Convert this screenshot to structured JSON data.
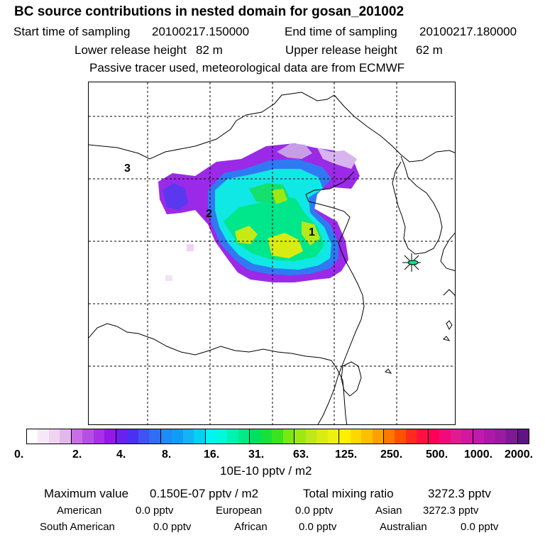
{
  "header": {
    "title": "BC  source contributions in nested domain for gosan_201002",
    "start_label": "Start time of sampling",
    "start_value": "20100217.150000",
    "end_label": "End time of sampling",
    "end_value": "20100217.180000",
    "lower_label": "Lower release height",
    "lower_value": "82 m",
    "upper_label": "Upper release height",
    "upper_value": "62 m",
    "note": "Passive tracer used, meteorological data are from ECMWF"
  },
  "map": {
    "region_labels": [
      "1",
      "2",
      "3"
    ],
    "receptor": "gosan-receptor-star"
  },
  "colorbar": {
    "colors": [
      "#ffffff",
      "#f6e8f8",
      "#eed4f2",
      "#e2b8ec",
      "#c96ee6",
      "#b54fe4",
      "#a830e6",
      "#9418ea",
      "#6a20ee",
      "#4a30f2",
      "#3f52f2",
      "#2f6ef2",
      "#1e8cf4",
      "#109cf6",
      "#13b4f4",
      "#00d2f0",
      "#00f4f2",
      "#00f8dc",
      "#00f2b0",
      "#00ea84",
      "#00e060",
      "#18e03a",
      "#3ae41c",
      "#7ae812",
      "#9ee812",
      "#bee818",
      "#d8ec14",
      "#eef010",
      "#fff000",
      "#ffd800",
      "#ffbe00",
      "#ffa000",
      "#ff7800",
      "#ff5000",
      "#ff2a20",
      "#ff1040",
      "#ff0058",
      "#f00a7c",
      "#e01a92",
      "#d018a0",
      "#c01aac",
      "#ae18a8",
      "#9a1aa0",
      "#7e1894",
      "#5e1484"
    ],
    "tick_labels": [
      "0.",
      "2.",
      "4.",
      "8.",
      "16.",
      "31.",
      "63.",
      "125.",
      "250.",
      "500.",
      "1000.",
      "2000."
    ],
    "units": "10E-10 pptv / m2"
  },
  "stats": {
    "max_label": "Maximum value",
    "max_value": "0.150E-07 pptv / m2",
    "total_label": "Total mixing ratio",
    "total_value": "3272.3 pptv",
    "regions": [
      {
        "name": "American",
        "value": "0.0 pptv"
      },
      {
        "name": "European",
        "value": "0.0 pptv"
      },
      {
        "name": "Asian",
        "value": "3272.3 pptv"
      },
      {
        "name": "South American",
        "value": "0.0 pptv"
      },
      {
        "name": "African",
        "value": "0.0 pptv"
      },
      {
        "name": "Australian",
        "value": "0.0 pptv"
      }
    ]
  }
}
